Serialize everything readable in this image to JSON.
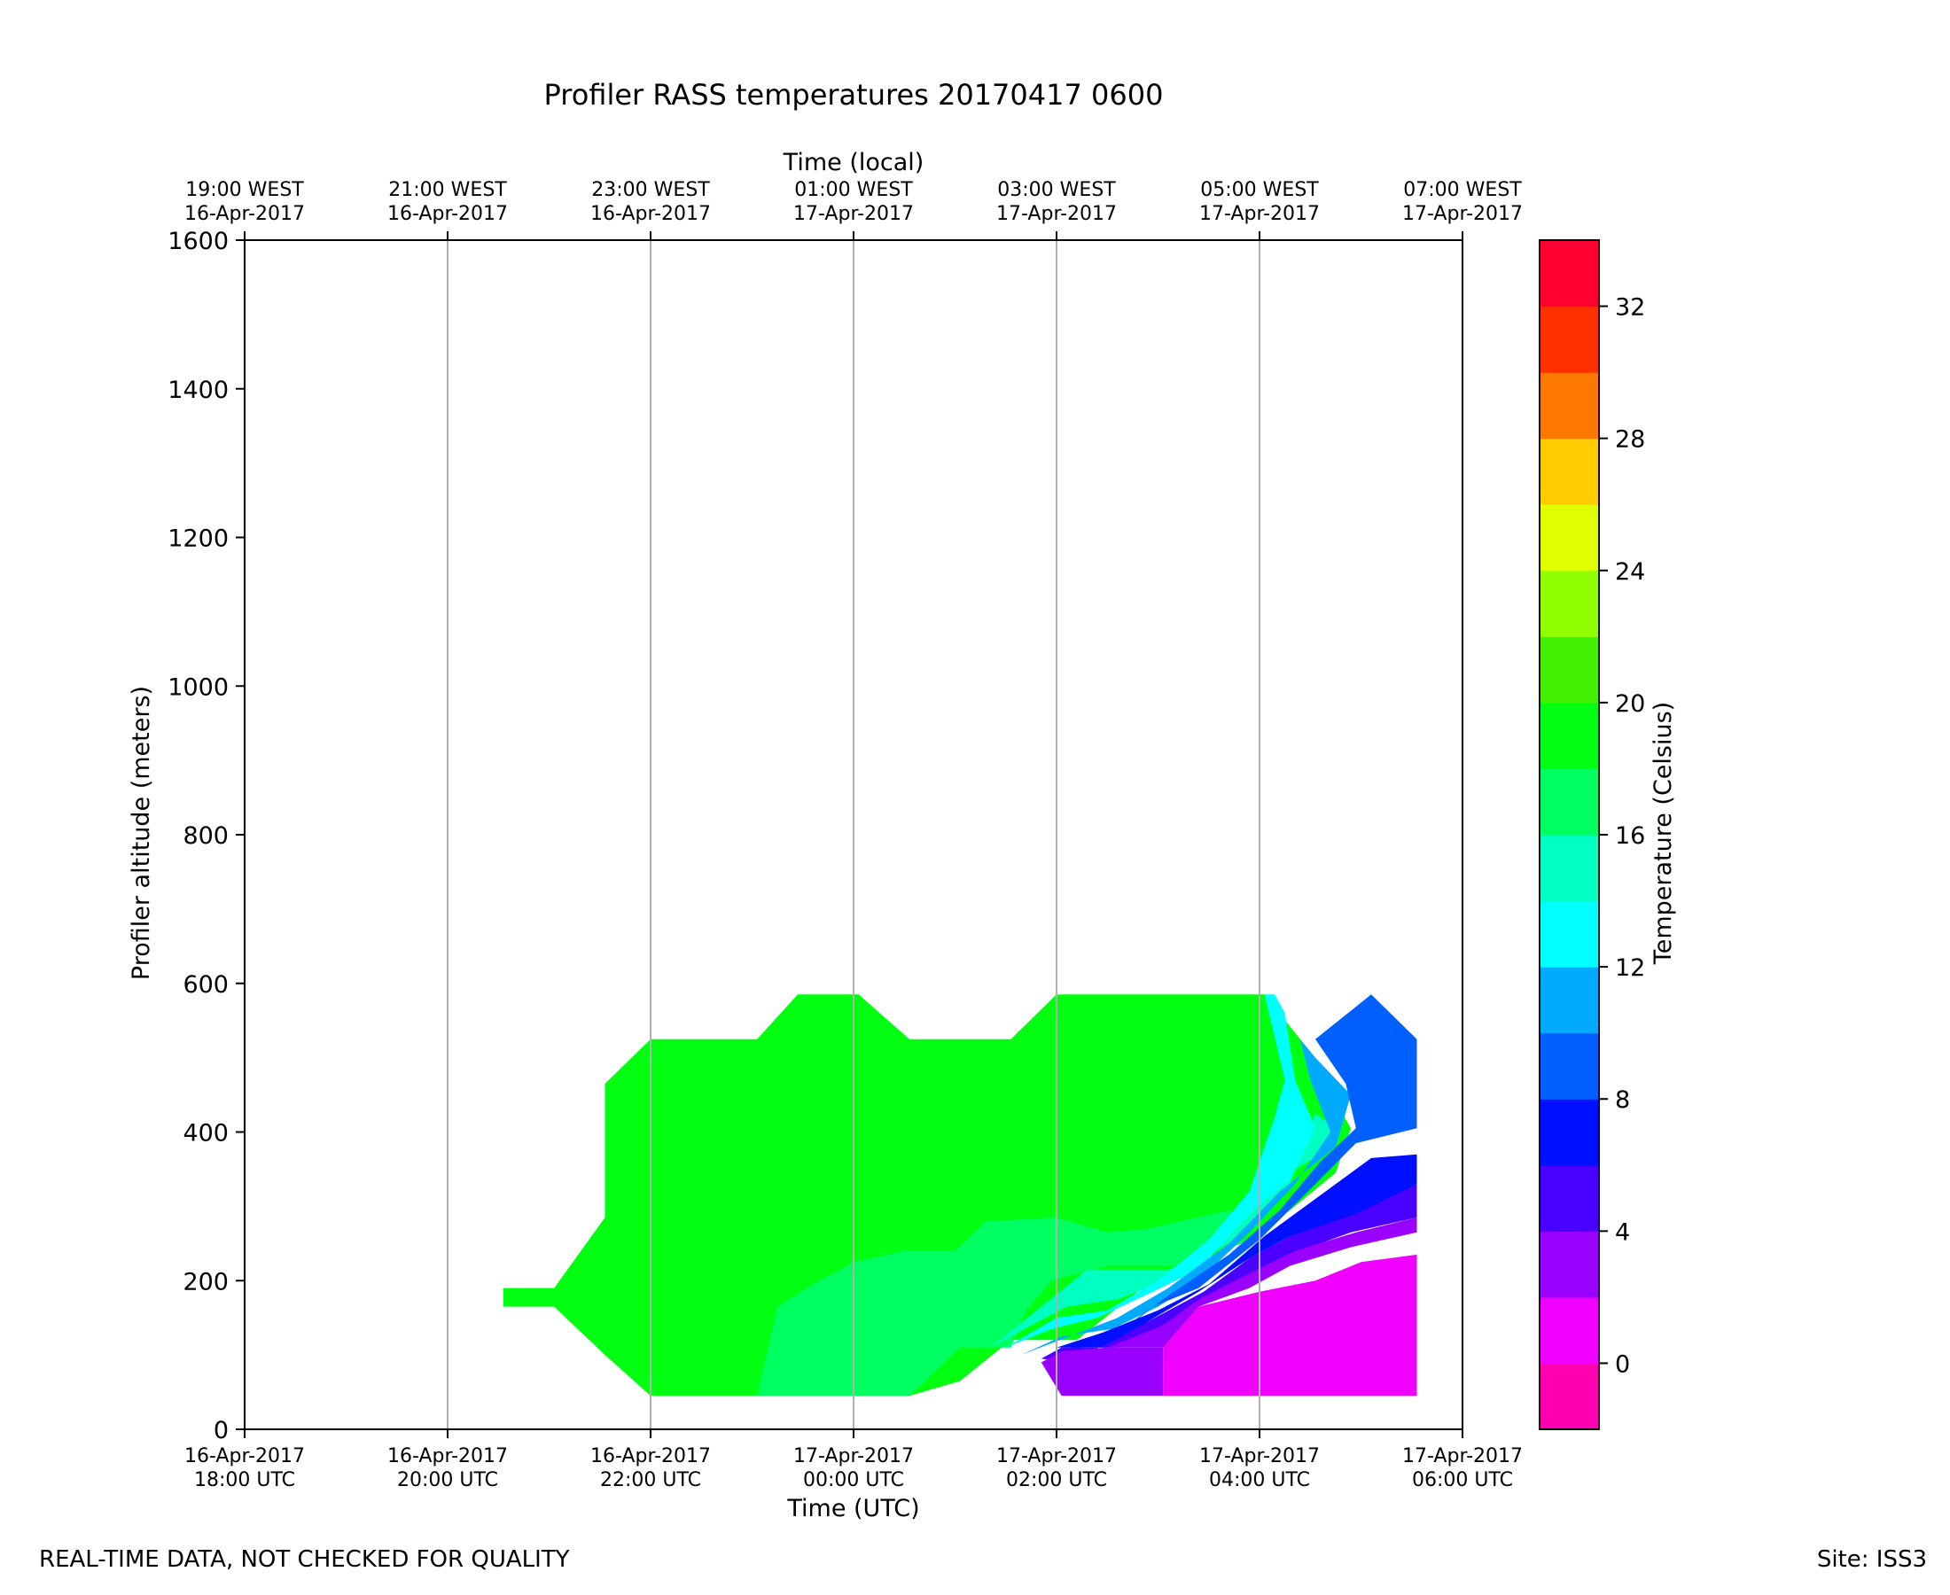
{
  "chart_data": {
    "type": "heatmap",
    "title": "Profiler RASS temperatures 20170417 0600",
    "xlabel": "Time (UTC)",
    "xlabel_top": "Time (local)",
    "ylabel": "Profiler altitude (meters)",
    "colorbar_label": "Temperature (Celsius)",
    "x_range_hours": [
      18,
      30
    ],
    "ylim": [
      0,
      1600
    ],
    "grid": "vertical",
    "x_ticks_bottom": [
      {
        "hour": 18,
        "line1": "16-Apr-2017",
        "line2": "18:00 UTC"
      },
      {
        "hour": 20,
        "line1": "16-Apr-2017",
        "line2": "20:00 UTC"
      },
      {
        "hour": 22,
        "line1": "16-Apr-2017",
        "line2": "22:00 UTC"
      },
      {
        "hour": 24,
        "line1": "17-Apr-2017",
        "line2": "00:00 UTC"
      },
      {
        "hour": 26,
        "line1": "17-Apr-2017",
        "line2": "02:00 UTC"
      },
      {
        "hour": 28,
        "line1": "17-Apr-2017",
        "line2": "04:00 UTC"
      },
      {
        "hour": 30,
        "line1": "17-Apr-2017",
        "line2": "06:00 UTC"
      }
    ],
    "x_ticks_top": [
      {
        "hour": 18,
        "line1": "19:00 WEST",
        "line2": "16-Apr-2017"
      },
      {
        "hour": 20,
        "line1": "21:00 WEST",
        "line2": "16-Apr-2017"
      },
      {
        "hour": 22,
        "line1": "23:00 WEST",
        "line2": "16-Apr-2017"
      },
      {
        "hour": 24,
        "line1": "01:00 WEST",
        "line2": "17-Apr-2017"
      },
      {
        "hour": 26,
        "line1": "03:00 WEST",
        "line2": "17-Apr-2017"
      },
      {
        "hour": 28,
        "line1": "05:00 WEST",
        "line2": "17-Apr-2017"
      },
      {
        "hour": 30,
        "line1": "07:00 WEST",
        "line2": "17-Apr-2017"
      }
    ],
    "y_ticks": [
      0,
      200,
      400,
      600,
      800,
      1000,
      1200,
      1400,
      1600
    ],
    "colorbar": {
      "vmin": -2,
      "vmax": 34,
      "ticks": [
        0,
        4,
        8,
        12,
        16,
        20,
        24,
        28,
        32
      ],
      "levels": [
        {
          "from": -2,
          "to": 0,
          "color": "#ff00b0"
        },
        {
          "from": 0,
          "to": 2,
          "color": "#f000ff"
        },
        {
          "from": 2,
          "to": 4,
          "color": "#9a00ff"
        },
        {
          "from": 4,
          "to": 6,
          "color": "#4a00ff"
        },
        {
          "from": 6,
          "to": 8,
          "color": "#0010ff"
        },
        {
          "from": 8,
          "to": 10,
          "color": "#0060ff"
        },
        {
          "from": 10,
          "to": 12,
          "color": "#00aaff"
        },
        {
          "from": 12,
          "to": 14,
          "color": "#00ffff"
        },
        {
          "from": 14,
          "to": 16,
          "color": "#00ffc0"
        },
        {
          "from": 16,
          "to": 18,
          "color": "#00ff60"
        },
        {
          "from": 18,
          "to": 20,
          "color": "#00ff10"
        },
        {
          "from": 20,
          "to": 22,
          "color": "#40f000"
        },
        {
          "from": 22,
          "to": 24,
          "color": "#90ff00"
        },
        {
          "from": 24,
          "to": 26,
          "color": "#e0ff00"
        },
        {
          "from": 26,
          "to": 28,
          "color": "#ffcc00"
        },
        {
          "from": 28,
          "to": 30,
          "color": "#ff7800"
        },
        {
          "from": 30,
          "to": 32,
          "color": "#ff3000"
        },
        {
          "from": 32,
          "to": 34,
          "color": "#ff0030"
        }
      ]
    },
    "regions": [
      {
        "temp_c": 19,
        "points": [
          [
            20.55,
            190
          ],
          [
            21.05,
            190
          ],
          [
            21.55,
            285
          ],
          [
            21.55,
            465
          ],
          [
            22.0,
            525
          ],
          [
            23.05,
            525
          ],
          [
            23.45,
            585
          ],
          [
            24.05,
            585
          ],
          [
            24.55,
            525
          ],
          [
            25.55,
            525
          ],
          [
            26.0,
            585
          ],
          [
            27.8,
            585
          ],
          [
            28.05,
            585
          ],
          [
            28.4,
            525
          ],
          [
            28.9,
            405
          ],
          [
            28.75,
            345
          ],
          [
            28.3,
            295
          ],
          [
            27.9,
            255
          ],
          [
            27.4,
            225
          ],
          [
            26.8,
            185
          ],
          [
            26.2,
            120
          ],
          [
            25.55,
            120
          ],
          [
            25.05,
            65
          ],
          [
            24.55,
            45
          ],
          [
            22.0,
            45
          ],
          [
            21.55,
            100
          ],
          [
            21.05,
            165
          ],
          [
            20.55,
            165
          ]
        ]
      },
      {
        "temp_c": 17,
        "points": [
          [
            23.05,
            45
          ],
          [
            24.55,
            45
          ],
          [
            25.05,
            110
          ],
          [
            25.55,
            110
          ],
          [
            25.7,
            160
          ],
          [
            25.95,
            200
          ],
          [
            26.5,
            220
          ],
          [
            27.2,
            220
          ],
          [
            27.7,
            245
          ],
          [
            27.9,
            265
          ],
          [
            27.7,
            295
          ],
          [
            26.9,
            270
          ],
          [
            26.5,
            265
          ],
          [
            26.0,
            285
          ],
          [
            25.3,
            280
          ],
          [
            25.0,
            240
          ],
          [
            24.5,
            240
          ],
          [
            24.0,
            225
          ],
          [
            23.6,
            195
          ],
          [
            23.25,
            165
          ]
        ]
      },
      {
        "temp_c": 15,
        "points": [
          [
            25.35,
            110
          ],
          [
            25.75,
            140
          ],
          [
            26.1,
            165
          ],
          [
            26.6,
            175
          ],
          [
            27.1,
            200
          ],
          [
            27.6,
            250
          ],
          [
            28.05,
            325
          ],
          [
            28.6,
            370
          ],
          [
            28.75,
            405
          ],
          [
            28.55,
            425
          ],
          [
            28.3,
            330
          ],
          [
            27.7,
            250
          ],
          [
            27.1,
            215
          ],
          [
            26.3,
            215
          ],
          [
            25.85,
            165
          ]
        ]
      },
      {
        "temp_c": 13,
        "points": [
          [
            25.5,
            110
          ],
          [
            25.95,
            135
          ],
          [
            26.4,
            150
          ],
          [
            26.95,
            185
          ],
          [
            27.4,
            215
          ],
          [
            27.9,
            290
          ],
          [
            28.3,
            335
          ],
          [
            28.55,
            405
          ],
          [
            28.35,
            470
          ],
          [
            28.25,
            560
          ],
          [
            28.15,
            585
          ],
          [
            28.05,
            585
          ],
          [
            28.25,
            470
          ],
          [
            28.15,
            420
          ],
          [
            27.9,
            320
          ],
          [
            27.5,
            255
          ],
          [
            27.0,
            200
          ],
          [
            26.5,
            160
          ],
          [
            26.0,
            150
          ]
        ]
      },
      {
        "temp_c": 11,
        "points": [
          [
            25.65,
            100
          ],
          [
            26.05,
            125
          ],
          [
            26.55,
            135
          ],
          [
            27.0,
            165
          ],
          [
            27.4,
            200
          ],
          [
            27.9,
            265
          ],
          [
            28.35,
            330
          ],
          [
            28.7,
            400
          ],
          [
            28.5,
            470
          ],
          [
            28.4,
            525
          ],
          [
            28.55,
            500
          ],
          [
            28.9,
            450
          ],
          [
            28.75,
            380
          ],
          [
            28.2,
            320
          ],
          [
            27.7,
            250
          ],
          [
            27.1,
            190
          ],
          [
            26.6,
            150
          ]
        ]
      },
      {
        "temp_c": 9,
        "points": [
          [
            26.0,
            95
          ],
          [
            26.2,
            115
          ],
          [
            26.55,
            120
          ],
          [
            26.95,
            165
          ],
          [
            27.4,
            190
          ],
          [
            28.0,
            255
          ],
          [
            28.55,
            330
          ],
          [
            28.95,
            385
          ],
          [
            29.55,
            405
          ],
          [
            29.55,
            525
          ],
          [
            29.1,
            585
          ],
          [
            28.55,
            525
          ],
          [
            28.85,
            465
          ],
          [
            28.95,
            405
          ],
          [
            28.6,
            360
          ],
          [
            28.2,
            295
          ],
          [
            27.7,
            235
          ],
          [
            27.1,
            180
          ],
          [
            26.6,
            130
          ]
        ]
      },
      {
        "temp_c": 7,
        "points": [
          [
            25.75,
            75
          ],
          [
            26.0,
            110
          ],
          [
            26.5,
            110
          ],
          [
            26.9,
            145
          ],
          [
            27.4,
            185
          ],
          [
            27.9,
            230
          ],
          [
            28.3,
            260
          ],
          [
            28.95,
            285
          ],
          [
            29.55,
            330
          ],
          [
            29.55,
            370
          ],
          [
            29.1,
            365
          ],
          [
            28.55,
            310
          ],
          [
            28.05,
            260
          ],
          [
            27.5,
            195
          ],
          [
            27.0,
            160
          ],
          [
            26.45,
            130
          ],
          [
            26.0,
            110
          ]
        ]
      },
      {
        "temp_c": 5,
        "points": [
          [
            25.85,
            95
          ],
          [
            26.05,
            110
          ],
          [
            26.6,
            110
          ],
          [
            27.05,
            140
          ],
          [
            27.4,
            170
          ],
          [
            27.9,
            205
          ],
          [
            28.3,
            235
          ],
          [
            28.9,
            265
          ],
          [
            29.55,
            285
          ],
          [
            29.55,
            330
          ],
          [
            28.95,
            290
          ],
          [
            28.3,
            260
          ],
          [
            27.9,
            230
          ],
          [
            27.45,
            185
          ],
          [
            26.9,
            145
          ],
          [
            26.5,
            115
          ],
          [
            26.1,
            90
          ]
        ]
      },
      {
        "temp_c": 3,
        "points": [
          [
            26.05,
            45
          ],
          [
            27.05,
            45
          ],
          [
            27.05,
            110
          ],
          [
            26.5,
            110
          ],
          [
            26.05,
            105
          ],
          [
            25.85,
            90
          ]
        ]
      },
      {
        "temp_c": 3,
        "points": [
          [
            26.5,
            110
          ],
          [
            27.05,
            110
          ],
          [
            27.4,
            165
          ],
          [
            27.9,
            190
          ],
          [
            28.3,
            220
          ],
          [
            28.9,
            245
          ],
          [
            29.55,
            265
          ],
          [
            29.55,
            285
          ],
          [
            28.95,
            265
          ],
          [
            28.35,
            240
          ],
          [
            27.9,
            210
          ],
          [
            27.4,
            175
          ],
          [
            27.05,
            140
          ]
        ]
      },
      {
        "temp_c": 1,
        "points": [
          [
            27.05,
            45
          ],
          [
            29.55,
            45
          ],
          [
            29.55,
            235
          ],
          [
            29.0,
            225
          ],
          [
            28.55,
            200
          ],
          [
            28.0,
            185
          ],
          [
            27.4,
            165
          ],
          [
            27.05,
            110
          ]
        ]
      }
    ]
  },
  "footer": {
    "left": "REAL-TIME DATA, NOT CHECKED FOR QUALITY",
    "right": "Site: ISS3"
  }
}
